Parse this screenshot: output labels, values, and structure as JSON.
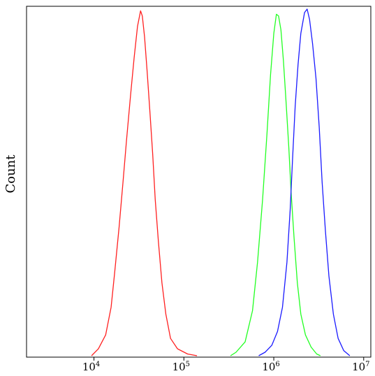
{
  "chart_data": {
    "type": "line",
    "title": "",
    "xlabel": "",
    "ylabel": "Count",
    "x_scale": "log",
    "xlim": [
      1778,
      12000000
    ],
    "ylim": [
      0,
      1
    ],
    "grid": false,
    "legend": "none",
    "x_ticks": [
      {
        "value": 10000,
        "base": "10",
        "exp": "4"
      },
      {
        "value": 100000,
        "base": "10",
        "exp": "5"
      },
      {
        "value": 1000000,
        "base": "10",
        "exp": "6"
      },
      {
        "value": 10000000,
        "base": "10",
        "exp": "7"
      }
    ],
    "series": [
      {
        "color": "#ff2020",
        "points": [
          [
            9400,
            0.0
          ],
          [
            11200,
            0.02
          ],
          [
            13500,
            0.06
          ],
          [
            15500,
            0.14
          ],
          [
            17000,
            0.24
          ],
          [
            19000,
            0.37
          ],
          [
            21000,
            0.5
          ],
          [
            23000,
            0.62
          ],
          [
            25500,
            0.75
          ],
          [
            28000,
            0.86
          ],
          [
            30500,
            0.95
          ],
          [
            33000,
            0.995
          ],
          [
            34500,
            0.98
          ],
          [
            36500,
            0.92
          ],
          [
            39000,
            0.82
          ],
          [
            42000,
            0.7
          ],
          [
            45000,
            0.58
          ],
          [
            48000,
            0.45
          ],
          [
            52000,
            0.33
          ],
          [
            57000,
            0.21
          ],
          [
            63000,
            0.12
          ],
          [
            71000,
            0.05
          ],
          [
            85000,
            0.02
          ],
          [
            110000,
            0.005
          ],
          [
            140000,
            0.0
          ]
        ]
      },
      {
        "color": "#22ff22",
        "points": [
          [
            330000,
            0.0
          ],
          [
            380000,
            0.01
          ],
          [
            480000,
            0.04
          ],
          [
            580000,
            0.13
          ],
          [
            660000,
            0.27
          ],
          [
            750000,
            0.45
          ],
          [
            840000,
            0.64
          ],
          [
            920000,
            0.81
          ],
          [
            1000000,
            0.93
          ],
          [
            1070000,
            0.985
          ],
          [
            1130000,
            0.98
          ],
          [
            1200000,
            0.94
          ],
          [
            1280000,
            0.85
          ],
          [
            1370000,
            0.73
          ],
          [
            1470000,
            0.6
          ],
          [
            1560000,
            0.47
          ],
          [
            1680000,
            0.34
          ],
          [
            1830000,
            0.21
          ],
          [
            2000000,
            0.12
          ],
          [
            2250000,
            0.06
          ],
          [
            2600000,
            0.025
          ],
          [
            3000000,
            0.005
          ],
          [
            3300000,
            0.0
          ]
        ]
      },
      {
        "color": "#1a1aff",
        "points": [
          [
            680000,
            0.0
          ],
          [
            800000,
            0.01
          ],
          [
            950000,
            0.03
          ],
          [
            1100000,
            0.07
          ],
          [
            1250000,
            0.14
          ],
          [
            1400000,
            0.27
          ],
          [
            1520000,
            0.42
          ],
          [
            1620000,
            0.57
          ],
          [
            1730000,
            0.72
          ],
          [
            1860000,
            0.84
          ],
          [
            2000000,
            0.93
          ],
          [
            2200000,
            0.99
          ],
          [
            2350000,
            1.0
          ],
          [
            2500000,
            0.97
          ],
          [
            2700000,
            0.9
          ],
          [
            2950000,
            0.8
          ],
          [
            3200000,
            0.66
          ],
          [
            3450000,
            0.5
          ],
          [
            3750000,
            0.36
          ],
          [
            4100000,
            0.23
          ],
          [
            4600000,
            0.12
          ],
          [
            5200000,
            0.05
          ],
          [
            6000000,
            0.015
          ],
          [
            7000000,
            0.0
          ]
        ]
      }
    ]
  }
}
